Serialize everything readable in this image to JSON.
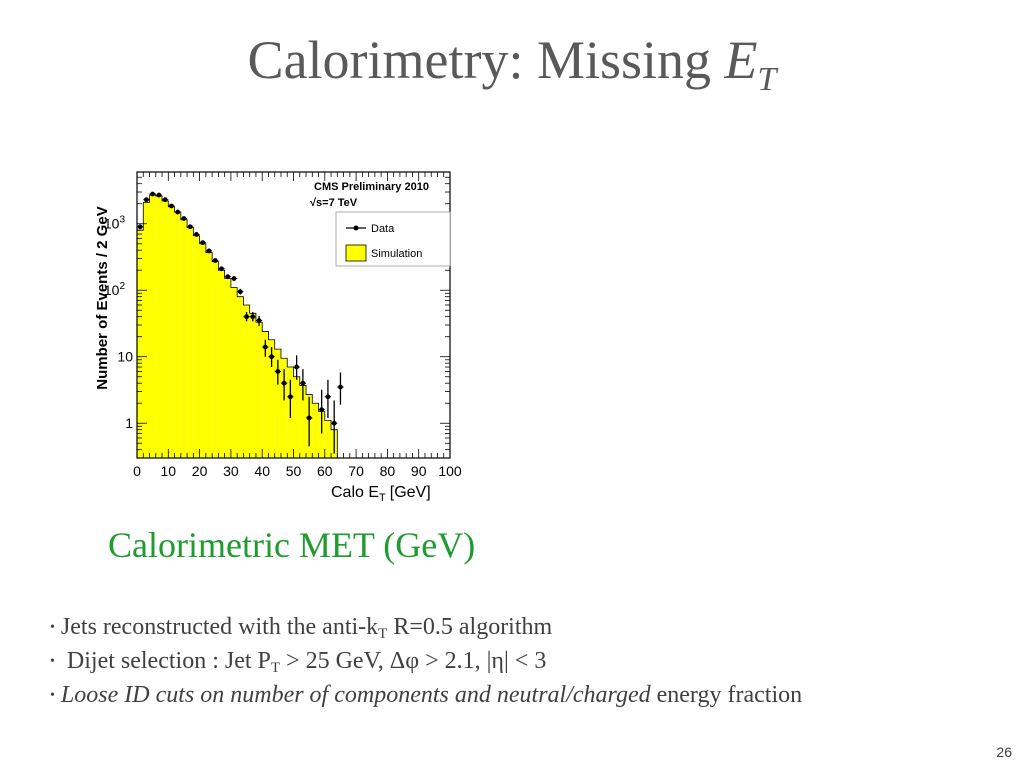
{
  "title": {
    "text": "Calorimetry: Missing ",
    "var": "E",
    "sub": "T"
  },
  "caption": "Calorimetric MET (GeV)",
  "bullets": [
    {
      "dot": "•",
      "text": "Jets reconstructed with the anti-k",
      "sub": "T",
      "after": " R=0.5 algorithm"
    },
    {
      "dot": "•",
      "text": " Dijet selection : Jet P",
      "sub": "T",
      "after": " > 25 GeV, Δφ > 2.1, |η| < 3"
    },
    {
      "dot": "•",
      "italic": "Loose ID cuts on number of components and neutral/charged",
      "plain": " energy fraction"
    }
  ],
  "page_number": "26",
  "chart_data": {
    "type": "bar",
    "annotations": [
      "CMS Preliminary 2010",
      "√s=7 TeV"
    ],
    "xlabel": "Calo E",
    "xlabel_sub": "T",
    "xlabel_unit": "[GeV]",
    "ylabel": "Number of Events / 2 GeV",
    "xlim": [
      0,
      100
    ],
    "ylim": [
      0.3,
      6000
    ],
    "yscale": "log",
    "xticks": [
      "0",
      "10",
      "20",
      "30",
      "40",
      "50",
      "60",
      "70",
      "80",
      "90",
      "100"
    ],
    "yticks": [
      {
        "value": 1,
        "label": "1"
      },
      {
        "value": 10,
        "label": "10"
      },
      {
        "value": 100,
        "label": "10",
        "sup": "2"
      },
      {
        "value": 1000,
        "label": "10",
        "sup": "3"
      }
    ],
    "legend_position": "top-right",
    "fill_color": "#ffff00",
    "series": [
      {
        "name": "Simulation",
        "kind": "histogram",
        "bin_width": 2,
        "bin_edges_start": 0,
        "values": [
          800,
          2100,
          2700,
          2600,
          2200,
          1800,
          1500,
          1150,
          880,
          660,
          500,
          370,
          270,
          200,
          150,
          110,
          80,
          60,
          45,
          33,
          24,
          18,
          13,
          9.5,
          7,
          5,
          3.7,
          2.7,
          2,
          1.5,
          1.1,
          0.8,
          0.3
        ]
      },
      {
        "name": "Data",
        "kind": "points",
        "points": [
          {
            "x": 1,
            "y": 900,
            "lo": 870,
            "hi": 930
          },
          {
            "x": 3,
            "y": 2300,
            "lo": 2250,
            "hi": 2350
          },
          {
            "x": 5,
            "y": 2800,
            "lo": 2740,
            "hi": 2860
          },
          {
            "x": 7,
            "y": 2700,
            "lo": 2640,
            "hi": 2760
          },
          {
            "x": 9,
            "y": 2300,
            "lo": 2250,
            "hi": 2350
          },
          {
            "x": 11,
            "y": 1850,
            "lo": 1800,
            "hi": 1900
          },
          {
            "x": 13,
            "y": 1500,
            "lo": 1460,
            "hi": 1540
          },
          {
            "x": 15,
            "y": 1200,
            "lo": 1160,
            "hi": 1240
          },
          {
            "x": 17,
            "y": 900,
            "lo": 870,
            "hi": 930
          },
          {
            "x": 19,
            "y": 690,
            "lo": 660,
            "hi": 720
          },
          {
            "x": 21,
            "y": 520,
            "lo": 495,
            "hi": 545
          },
          {
            "x": 23,
            "y": 390,
            "lo": 370,
            "hi": 410
          },
          {
            "x": 25,
            "y": 280,
            "lo": 263,
            "hi": 297
          },
          {
            "x": 27,
            "y": 210,
            "lo": 196,
            "hi": 224
          },
          {
            "x": 29,
            "y": 160,
            "lo": 148,
            "hi": 172
          },
          {
            "x": 31,
            "y": 150,
            "lo": 138,
            "hi": 162
          },
          {
            "x": 33,
            "y": 95,
            "lo": 86,
            "hi": 105
          },
          {
            "x": 35,
            "y": 40,
            "lo": 34,
            "hi": 47
          },
          {
            "x": 37,
            "y": 40,
            "lo": 34,
            "hi": 47
          },
          {
            "x": 39,
            "y": 35,
            "lo": 29,
            "hi": 41
          },
          {
            "x": 41,
            "y": 14,
            "lo": 10,
            "hi": 18
          },
          {
            "x": 43,
            "y": 10,
            "lo": 7,
            "hi": 14
          },
          {
            "x": 45,
            "y": 6,
            "lo": 3.8,
            "hi": 9
          },
          {
            "x": 47,
            "y": 4,
            "lo": 2.2,
            "hi": 6.5
          },
          {
            "x": 49,
            "y": 2.5,
            "lo": 1.2,
            "hi": 4.5
          },
          {
            "x": 51,
            "y": 7,
            "lo": 4.5,
            "hi": 10.5
          },
          {
            "x": 53,
            "y": 4,
            "lo": 2.2,
            "hi": 6.5
          },
          {
            "x": 55,
            "y": 1.2,
            "lo": 0.45,
            "hi": 2.5
          },
          {
            "x": 59,
            "y": 1.6,
            "lo": 0.7,
            "hi": 3.2
          },
          {
            "x": 61,
            "y": 2.5,
            "lo": 1.2,
            "hi": 4.5
          },
          {
            "x": 63,
            "y": 1,
            "lo": 0.35,
            "hi": 2.2
          },
          {
            "x": 65,
            "y": 3.5,
            "lo": 1.9,
            "hi": 5.8
          }
        ]
      }
    ]
  }
}
